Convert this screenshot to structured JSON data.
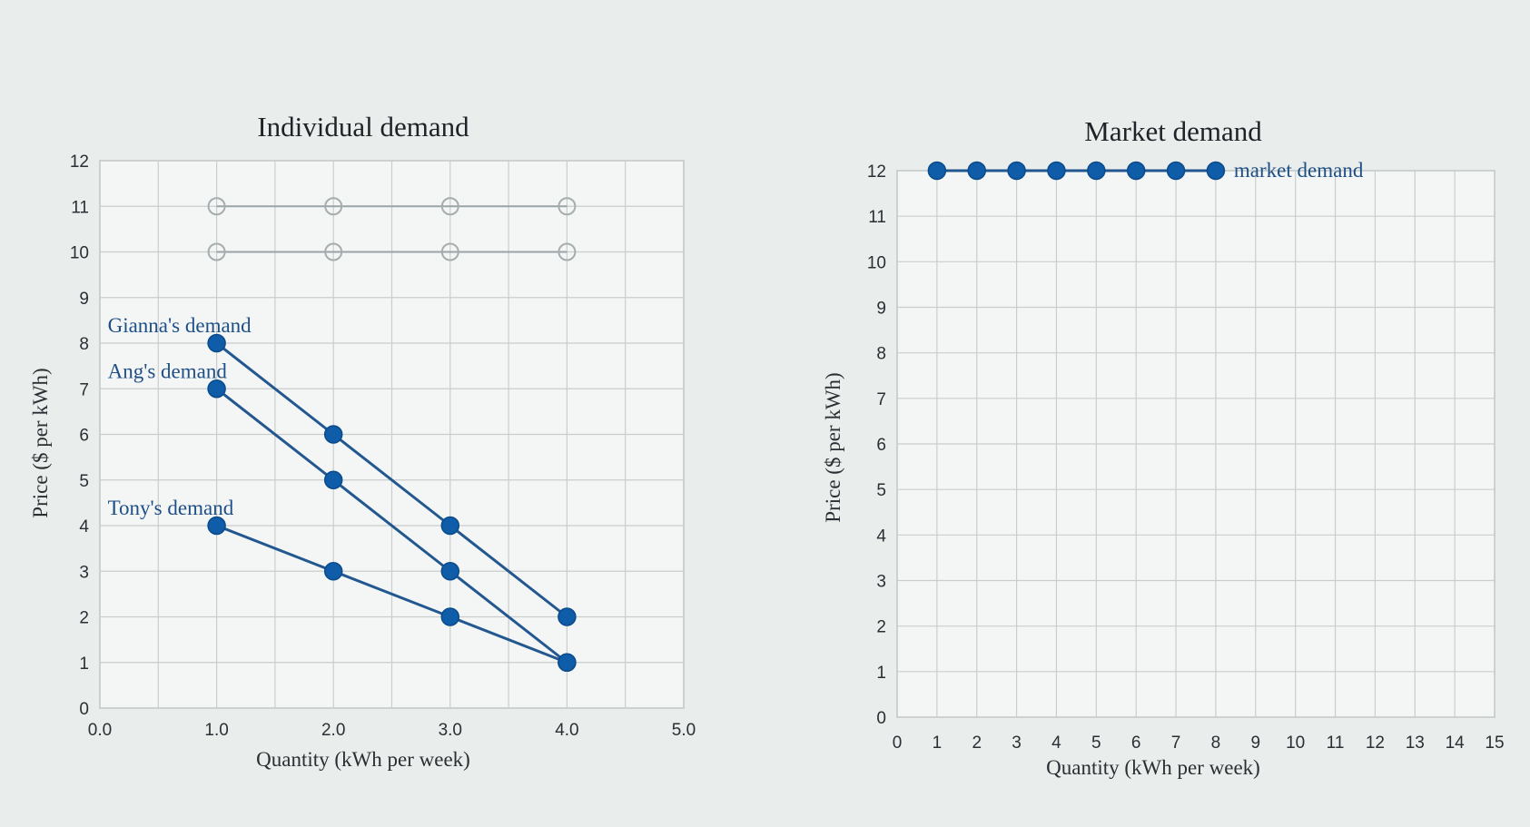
{
  "chart_data": [
    {
      "type": "line",
      "title": "Individual demand",
      "xlabel": "Quantity (kWh per week)",
      "ylabel": "Price ($ per kWh)",
      "xlim": [
        0,
        5
      ],
      "ylim": [
        0,
        12
      ],
      "x_ticks": [
        "0.0",
        "1.0",
        "2.0",
        "3.0",
        "4.0",
        "5.0"
      ],
      "y_ticks": [
        "0",
        "1",
        "2",
        "3",
        "4",
        "5",
        "6",
        "7",
        "8",
        "9",
        "10",
        "11",
        "12"
      ],
      "grid": true,
      "series": [
        {
          "name": "Gianna's demand",
          "x": [
            1,
            2,
            3,
            4
          ],
          "y": [
            8,
            6,
            4,
            2
          ]
        },
        {
          "name": "Ang's demand",
          "x": [
            1,
            2,
            3,
            4
          ],
          "y": [
            7,
            5,
            3,
            1
          ]
        },
        {
          "name": "Tony's demand",
          "x": [
            1,
            2,
            3,
            4
          ],
          "y": [
            4,
            3,
            2,
            1
          ]
        }
      ],
      "placeholder_series": [
        {
          "x": [
            1,
            2,
            3,
            4
          ],
          "y": [
            11,
            11,
            11,
            11
          ]
        },
        {
          "x": [
            1,
            2,
            3,
            4
          ],
          "y": [
            10,
            10,
            10,
            10
          ]
        }
      ],
      "color": "#0f5ca8"
    },
    {
      "type": "line",
      "title": "Market demand",
      "xlabel": "Quantity (kWh per week)",
      "ylabel": "Price ($ per kWh)",
      "xlim": [
        0,
        15
      ],
      "ylim": [
        0,
        12
      ],
      "x_ticks": [
        "0",
        "1",
        "2",
        "3",
        "4",
        "5",
        "6",
        "7",
        "8",
        "9",
        "10",
        "11",
        "12",
        "13",
        "14",
        "15"
      ],
      "y_ticks": [
        "0",
        "1",
        "2",
        "3",
        "4",
        "5",
        "6",
        "7",
        "8",
        "9",
        "10",
        "11",
        "12"
      ],
      "grid": true,
      "series": [
        {
          "name": "market demand",
          "x": [
            1,
            2,
            3,
            4,
            5,
            6,
            7,
            8
          ],
          "y": [
            12,
            12,
            12,
            12,
            12,
            12,
            12,
            12
          ]
        }
      ],
      "color": "#0f5ca8"
    }
  ]
}
